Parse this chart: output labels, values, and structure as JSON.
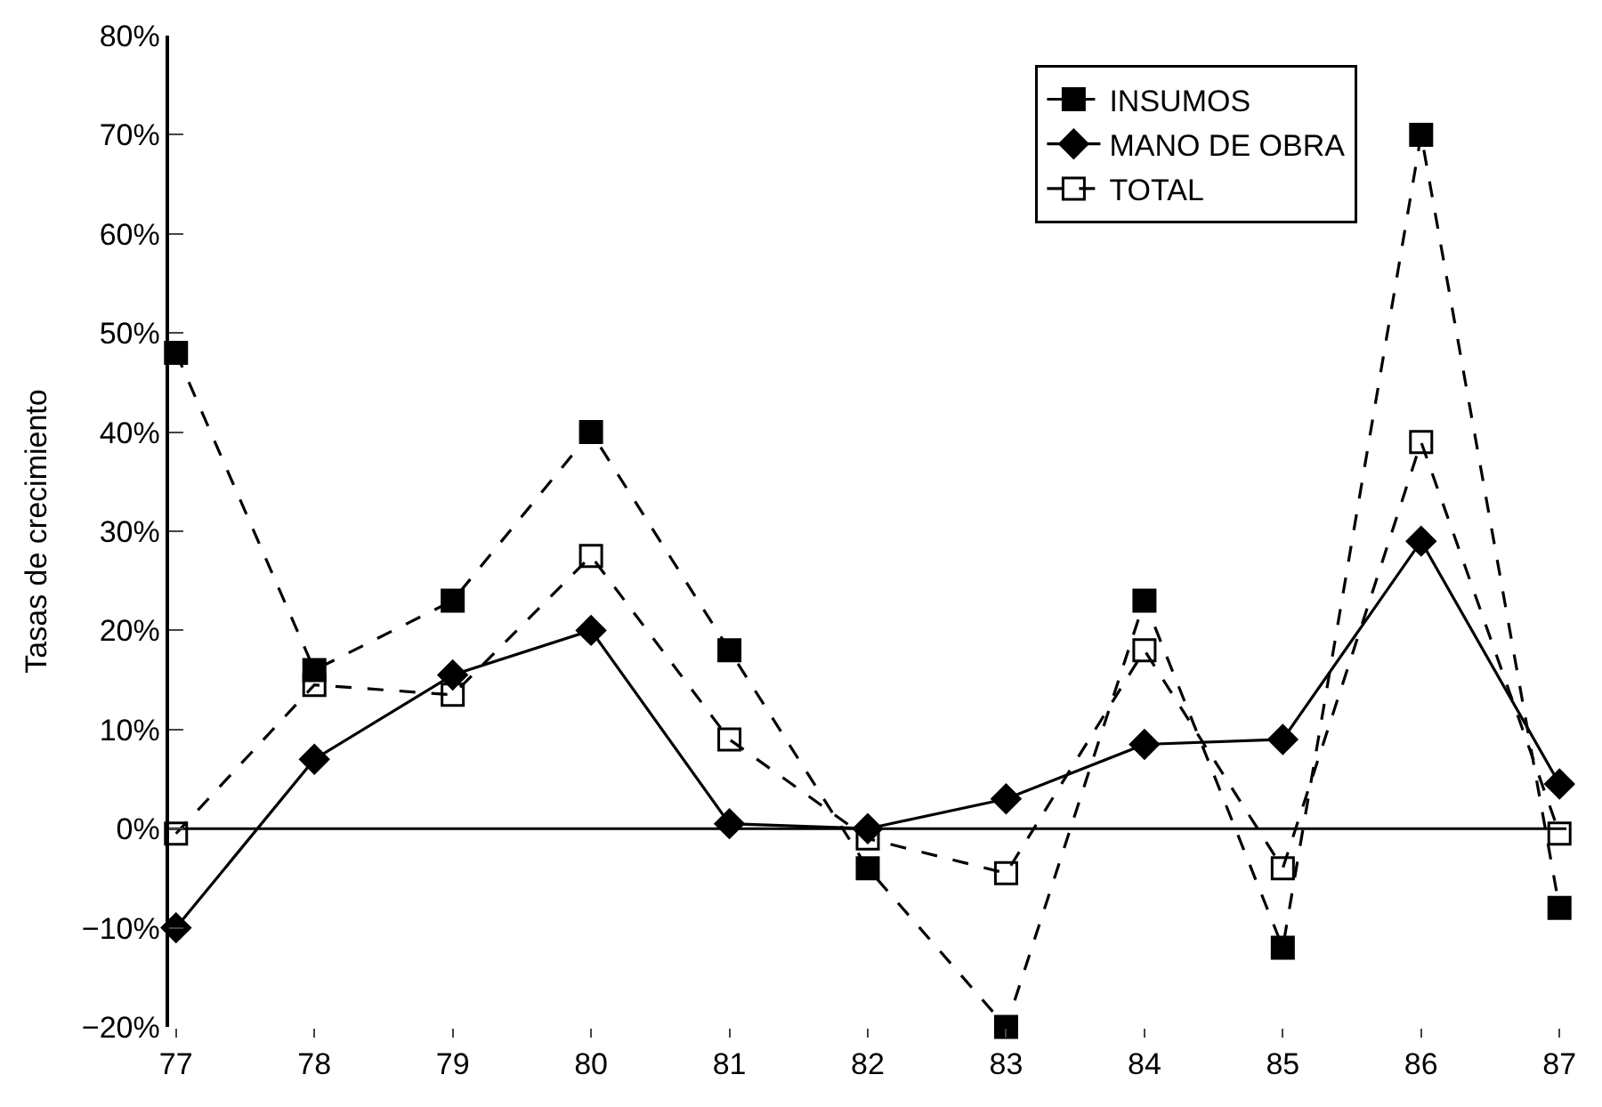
{
  "chart_data": {
    "type": "line",
    "ylabel": "Tasas de crecimiento",
    "categories": [
      "77",
      "78",
      "79",
      "80",
      "81",
      "82",
      "83",
      "84",
      "85",
      "86",
      "87"
    ],
    "series": [
      {
        "name": "INSUMOS",
        "color": "#000000",
        "marker": "square",
        "line_style": "dashed",
        "values": [
          48,
          16,
          23,
          40,
          18,
          -4,
          -20,
          23,
          -12,
          70,
          -8
        ]
      },
      {
        "name": "MANO DE OBRA",
        "color": "#000000",
        "marker": "diamond",
        "line_style": "solid",
        "values": [
          -10,
          7,
          15.5,
          20,
          0.5,
          0,
          3,
          8.5,
          9,
          29,
          4.5
        ]
      },
      {
        "name": "TOTAL",
        "color": "#000000",
        "marker": "square-open",
        "line_style": "dashed",
        "values": [
          -0.5,
          14.5,
          13.5,
          27.5,
          9,
          -1,
          -4.5,
          18,
          -4,
          39,
          -0.5
        ]
      }
    ],
    "ylim": [
      -20,
      80
    ],
    "yticks": [
      {
        "value": -20,
        "label": "−20%"
      },
      {
        "value": -10,
        "label": "−10%"
      },
      {
        "value": 0,
        "label": "0%"
      },
      {
        "value": 10,
        "label": "10%"
      },
      {
        "value": 20,
        "label": "20%"
      },
      {
        "value": 30,
        "label": "30%"
      },
      {
        "value": 40,
        "label": "40%"
      },
      {
        "value": 50,
        "label": "50%"
      },
      {
        "value": 60,
        "label": "60%"
      },
      {
        "value": 70,
        "label": "70%"
      },
      {
        "value": 80,
        "label": "80%"
      }
    ],
    "ref_lines": [
      {
        "axis": "y",
        "value": 0,
        "color": "#000000"
      }
    ],
    "grid": false,
    "legend": "top right"
  }
}
